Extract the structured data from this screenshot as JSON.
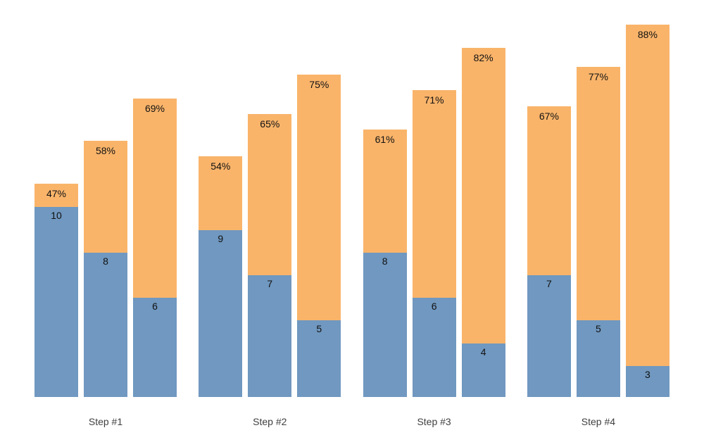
{
  "page": {
    "background_color": "#ffffff"
  },
  "chart_data": {
    "type": "bar",
    "subtype": "grouped-stacked",
    "title": "",
    "xlabel": "",
    "ylabel": "",
    "grid": false,
    "legend": false,
    "axes_visible": false,
    "categories": [
      "Step #1",
      "Step #2",
      "Step #3",
      "Step #4"
    ],
    "colors": {
      "bottom_segment": "#7098C0",
      "top_segment": "#F9B46A",
      "bar_label_text": "#111111",
      "category_label_text": "#3f3f3f"
    },
    "bars": [
      {
        "category": "Step #1",
        "bottom_value": 10,
        "bottom_label": "10",
        "total_percent": 47,
        "percent_label": "47%"
      },
      {
        "category": "Step #1",
        "bottom_value": 8,
        "bottom_label": "8",
        "total_percent": 58,
        "percent_label": "58%"
      },
      {
        "category": "Step #1",
        "bottom_value": 6,
        "bottom_label": "6",
        "total_percent": 69,
        "percent_label": "69%"
      },
      {
        "category": "Step #2",
        "bottom_value": 9,
        "bottom_label": "9",
        "total_percent": 54,
        "percent_label": "54%"
      },
      {
        "category": "Step #2",
        "bottom_value": 7,
        "bottom_label": "7",
        "total_percent": 65,
        "percent_label": "65%"
      },
      {
        "category": "Step #2",
        "bottom_value": 5,
        "bottom_label": "5",
        "total_percent": 75,
        "percent_label": "75%"
      },
      {
        "category": "Step #3",
        "bottom_value": 8,
        "bottom_label": "8",
        "total_percent": 61,
        "percent_label": "61%"
      },
      {
        "category": "Step #3",
        "bottom_value": 6,
        "bottom_label": "6",
        "total_percent": 71,
        "percent_label": "71%"
      },
      {
        "category": "Step #3",
        "bottom_value": 4,
        "bottom_label": "4",
        "total_percent": 82,
        "percent_label": "82%"
      },
      {
        "category": "Step #4",
        "bottom_value": 7,
        "bottom_label": "7",
        "total_percent": 67,
        "percent_label": "67%"
      },
      {
        "category": "Step #4",
        "bottom_value": 5,
        "bottom_label": "5",
        "total_percent": 77,
        "percent_label": "77%"
      },
      {
        "category": "Step #4",
        "bottom_value": 3,
        "bottom_label": "3",
        "total_percent": 88,
        "percent_label": "88%"
      }
    ]
  }
}
